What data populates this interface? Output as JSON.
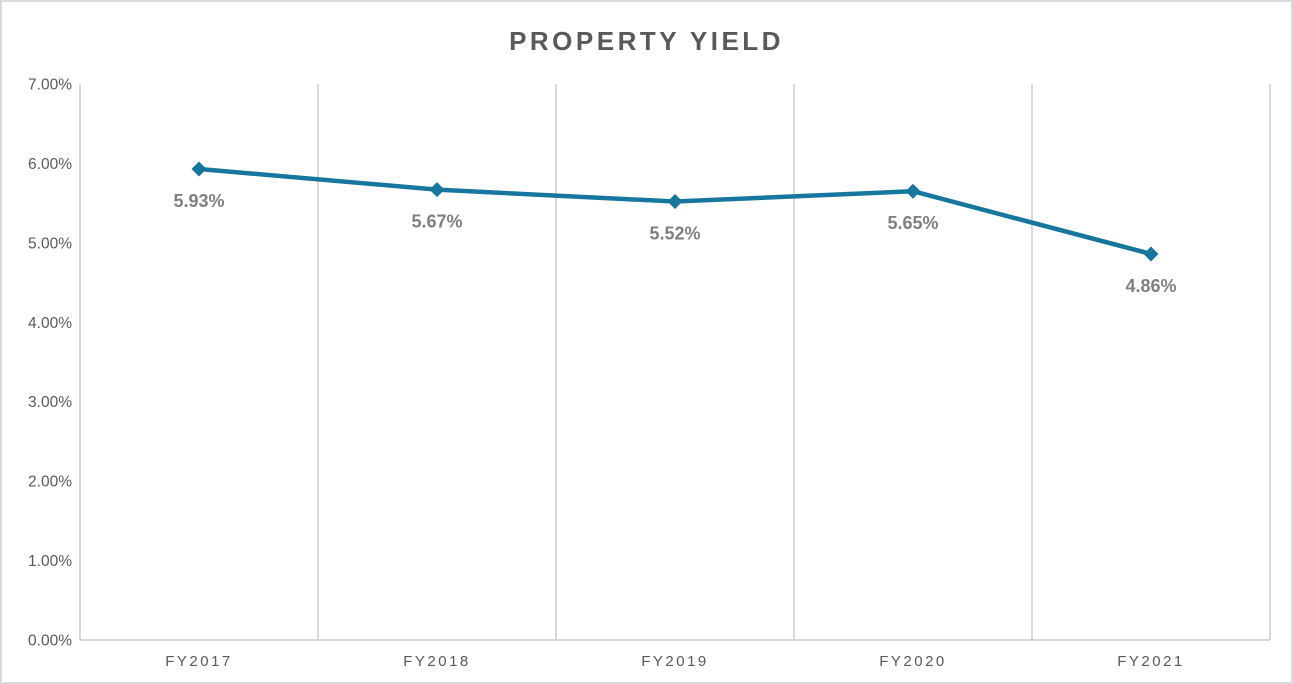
{
  "chart_data": {
    "type": "line",
    "title": "PROPERTY YIELD",
    "categories": [
      "FY2017",
      "FY2018",
      "FY2019",
      "FY2020",
      "FY2021"
    ],
    "series": [
      {
        "name": "Property Yield",
        "values": [
          5.93,
          5.67,
          5.52,
          5.65,
          4.86
        ],
        "data_labels": [
          "5.93%",
          "5.67%",
          "5.52%",
          "5.65%",
          "4.86%"
        ]
      }
    ],
    "y_ticks": [
      "0.00%",
      "1.00%",
      "2.00%",
      "3.00%",
      "4.00%",
      "5.00%",
      "6.00%",
      "7.00%"
    ],
    "ylim": [
      0,
      7
    ],
    "xlabel": "",
    "ylabel": "",
    "grid": "vertical-only",
    "legend": "none",
    "marker": "diamond",
    "colors": {
      "line": "#17769E",
      "marker": "#17769E",
      "data_label_text": "#7F7F7F",
      "axis_text": "#595959",
      "title_text": "#595959",
      "gridline": "#D9D9D9",
      "axis_line": "#C8C8C8",
      "border": "#D9D9D9",
      "background": "#FFFFFF"
    }
  }
}
